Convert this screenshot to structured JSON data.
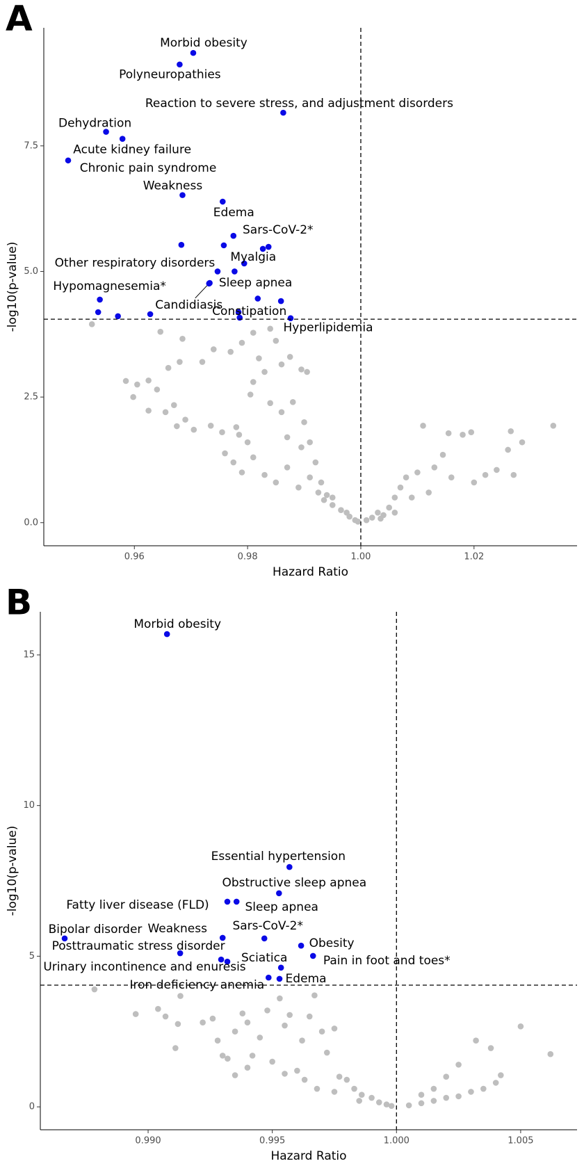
{
  "chart_data": [
    {
      "type": "scatter",
      "panel_label": "A",
      "xlabel": "Hazard Ratio",
      "ylabel": "-log10(p-value)",
      "xlim": [
        0.944,
        1.0382
      ],
      "ylim": [
        -0.46,
        9.85
      ],
      "xticks": [
        0.96,
        0.98,
        {
          "value": 1,
          "label": "1.00"
        },
        1.02
      ],
      "yticks": [
        {
          "value": 0,
          "label": "0.0"
        },
        2.5,
        {
          "value": 5,
          "label": "5.0"
        },
        7.5
      ],
      "hlines": [
        4.05
      ],
      "vlines": [
        1
      ],
      "series": [
        {
          "color": "#bebebe",
          "x": [
            0.9525,
            0.9646,
            0.9685,
            0.984,
            0.985,
            0.974,
            0.977,
            0.979,
            0.981,
            0.9875,
            0.986,
            0.983,
            0.982,
            0.9895,
            0.9905,
            0.972,
            0.968,
            0.966,
            0.9585,
            0.9605,
            0.9625,
            0.9598,
            0.964,
            0.9655,
            0.9625,
            0.967,
            0.969,
            0.9675,
            0.9705,
            0.9735,
            0.9755,
            0.978,
            0.9785,
            0.98,
            0.981,
            0.9805,
            0.984,
            0.986,
            0.988,
            0.99,
            0.987,
            0.9895,
            0.991,
            0.976,
            0.9775,
            0.979,
            0.981,
            0.983,
            0.985,
            0.987,
            0.989,
            0.991,
            0.9925,
            0.9935,
            0.995,
            0.9965,
            0.998,
            0.999,
            0.9995,
            0.9975,
            0.993,
            0.994,
            0.992,
            0.995,
            1.001,
            1.002,
            1.003,
            1.004,
            1.005,
            1.006,
            1.007,
            1.008,
            1.009,
            1.01,
            1.011,
            1.012,
            1.013,
            1.0145,
            1.0155,
            1.016,
            1.018,
            1.0195,
            1.02,
            1.022,
            1.024,
            1.026,
            1.0265,
            1.027,
            1.0285,
            1.034,
            1.006,
            1.0035
          ],
          "y": [
            3.95,
            3.8,
            3.66,
            3.86,
            3.62,
            3.45,
            3.4,
            3.58,
            3.78,
            3.3,
            3.15,
            3.0,
            3.27,
            3.05,
            3.0,
            3.2,
            3.2,
            3.08,
            2.82,
            2.75,
            2.83,
            2.5,
            2.65,
            2.2,
            2.23,
            2.34,
            2.05,
            1.92,
            1.85,
            1.93,
            1.8,
            1.9,
            1.75,
            1.6,
            2.8,
            2.55,
            2.38,
            2.2,
            2.4,
            2.0,
            1.7,
            1.5,
            1.6,
            1.38,
            1.2,
            1.0,
            1.3,
            0.95,
            0.8,
            1.1,
            0.7,
            0.9,
            0.6,
            0.45,
            0.35,
            0.25,
            0.12,
            0.05,
            0.02,
            0.2,
            0.8,
            0.55,
            1.2,
            0.5,
            0.05,
            0.1,
            0.2,
            0.15,
            0.3,
            0.5,
            0.7,
            0.9,
            0.5,
            1.0,
            1.93,
            0.6,
            1.1,
            1.35,
            1.78,
            0.9,
            1.75,
            1.8,
            0.8,
            0.95,
            1.05,
            1.45,
            1.82,
            0.95,
            1.6,
            1.93,
            0.2,
            0.08
          ]
        },
        {
          "color": "#0a0ae6",
          "x": [
            0.9704,
            0.968,
            0.9863,
            0.955,
            0.9579,
            0.9483,
            0.9685,
            0.9756,
            0.9775,
            0.9683,
            0.9758,
            0.9827,
            0.9837,
            0.9794,
            0.9747,
            0.9777,
            0.9733,
            0.9732,
            0.9539,
            0.9818,
            0.9859,
            0.9536,
            0.9571,
            0.9628,
            0.9784,
            0.9786,
            0.9876
          ],
          "y": [
            9.35,
            9.12,
            8.16,
            7.78,
            7.64,
            7.21,
            6.52,
            6.39,
            5.71,
            5.53,
            5.52,
            5.45,
            5.49,
            5.16,
            5.0,
            5.0,
            4.77,
            4.76,
            4.44,
            4.46,
            4.41,
            4.19,
            4.11,
            4.15,
            4.19,
            4.08,
            4.07
          ],
          "labels": [
            "Morbid obesity",
            "Polyneuropathies",
            "Reaction to severe stress, and adjustment disorders",
            "Dehydration",
            "Acute kidney failure",
            "Chronic pain syndrome",
            "Weakness",
            "Edema",
            "Sars-CoV-2*",
            null,
            null,
            null,
            null,
            "Myalgia",
            "Other respiratory disorders",
            null,
            "Sleep apnea",
            "Candidiasis",
            "Hypomagnesemia*",
            null,
            null,
            null,
            null,
            null,
            null,
            "Constipation",
            "Hyperlipidemia"
          ]
        }
      ]
    },
    {
      "type": "scatter",
      "panel_label": "B",
      "xlabel": "Hazard Ratio",
      "ylabel": "-log10(p-value)",
      "xlim": [
        0.98566,
        1.00727
      ],
      "ylim": [
        -0.76,
        16.43
      ],
      "xticks": [
        {
          "value": 0.99,
          "label": "0.990"
        },
        0.995,
        {
          "value": 1,
          "label": "1.000"
        },
        1.005
      ],
      "yticks": [
        0,
        5,
        10,
        15
      ],
      "hlines": [
        4.04
      ],
      "vlines": [
        1
      ],
      "series": [
        {
          "color": "#bebebe",
          "x": [
            0.98784,
            0.9895,
            0.9904,
            0.9907,
            0.9912,
            0.9911,
            0.9913,
            0.9922,
            0.9926,
            0.9928,
            0.9932,
            0.9935,
            0.9938,
            0.994,
            0.9942,
            0.9945,
            0.9948,
            0.995,
            0.9953,
            0.9955,
            0.9957,
            0.996,
            0.9962,
            0.9965,
            0.9967,
            0.997,
            0.9972,
            0.9975,
            0.9977,
            0.998,
            0.9983,
            0.9986,
            0.999,
            0.9993,
            0.9996,
            0.9998,
            0.9963,
            0.9968,
            0.9955,
            0.994,
            0.9935,
            0.993,
            0.9975,
            0.9985,
            1.0005,
            1.001,
            1.0015,
            1.002,
            1.0025,
            1.003,
            1.0015,
            1.002,
            1.0025,
            1.0032,
            1.0035,
            1.0038,
            1.004,
            1.0042,
            1.005,
            1.0062,
            1.001
          ],
          "y": [
            3.9,
            3.08,
            3.25,
            3.0,
            2.75,
            1.95,
            3.68,
            2.8,
            2.93,
            2.2,
            1.6,
            2.5,
            3.1,
            2.8,
            1.7,
            2.3,
            3.2,
            1.5,
            3.6,
            2.7,
            3.05,
            1.2,
            2.2,
            3.0,
            3.7,
            2.5,
            1.8,
            2.6,
            1.0,
            0.9,
            0.6,
            0.4,
            0.3,
            0.15,
            0.08,
            0.03,
            0.9,
            0.6,
            1.1,
            1.3,
            1.05,
            1.7,
            0.5,
            0.2,
            0.05,
            0.12,
            0.2,
            0.3,
            0.35,
            0.5,
            0.6,
            1.0,
            1.4,
            2.2,
            0.6,
            1.95,
            0.8,
            1.05,
            2.67,
            1.75,
            0.4
          ]
        },
        {
          "color": "#0a0ae6",
          "x": [
            0.99076,
            0.99569,
            0.99527,
            0.99319,
            0.99356,
            0.98664,
            0.993,
            0.99468,
            0.99616,
            0.99129,
            0.99294,
            0.99664,
            0.99319,
            0.99535,
            0.99485,
            0.99529
          ],
          "y": [
            15.69,
            7.96,
            7.09,
            6.81,
            6.81,
            5.59,
            5.61,
            5.59,
            5.35,
            5.1,
            4.89,
            5.01,
            4.82,
            4.62,
            4.29,
            4.25
          ],
          "labels": [
            "Morbid obesity",
            "Essential hypertension",
            "Obstructive sleep apnea",
            "Fatty liver disease (FLD)",
            "Sleep apnea",
            "Bipolar disorder",
            "Weakness",
            "Sars-CoV-2*",
            "Obesity",
            "Posttraumatic stress disorder",
            null,
            "Pain in foot and toes*",
            "Urinary incontinence and enuresis",
            "Sciatica",
            "Iron deficiency anemia",
            "Edema"
          ]
        }
      ]
    }
  ]
}
